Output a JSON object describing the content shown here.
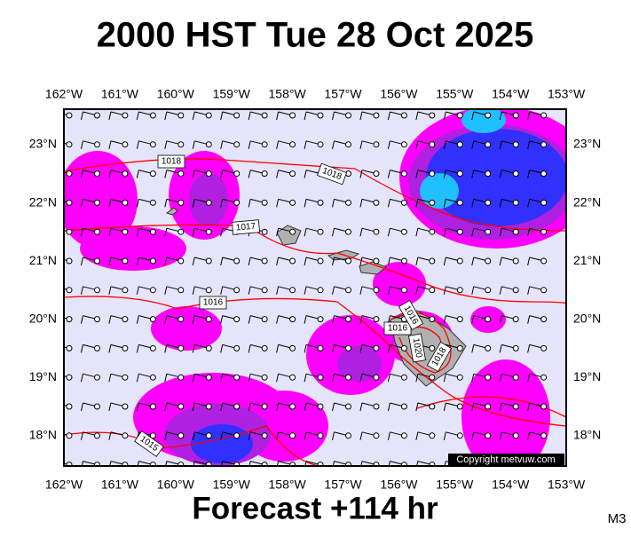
{
  "title": "2000 HST Tue 28 Oct 2025",
  "footer": "Forecast +114 hr",
  "model_label": "M3",
  "copyright": "Copyright metvuw.com",
  "lon_labels": [
    "162°W",
    "161°W",
    "160°W",
    "159°W",
    "158°W",
    "157°W",
    "156°W",
    "155°W",
    "154°W",
    "153°W"
  ],
  "lat_labels": [
    "23°N",
    "22°N",
    "21°N",
    "20°N",
    "19°N",
    "18°N"
  ],
  "isobar_labels": [
    "1018",
    "1018",
    "1017",
    "1016",
    "1015",
    "1016",
    "1016",
    "1020",
    "1018"
  ]
}
